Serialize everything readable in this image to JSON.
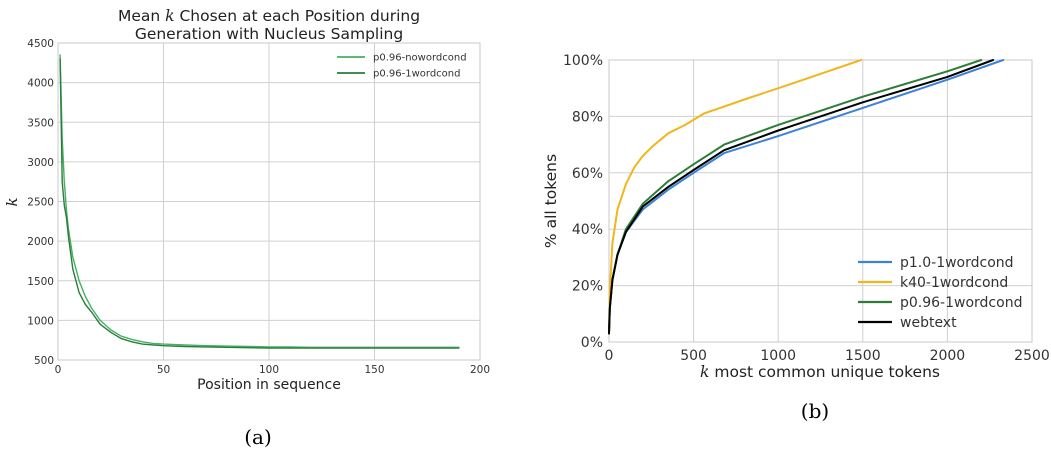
{
  "chart_data": [
    {
      "type": "line",
      "title_line1": "Mean k Chosen at each Position during",
      "title_line2": "Generation with Nucleus Sampling",
      "xlabel": "Position in sequence",
      "ylabel": "k",
      "xlim": [
        0,
        200
      ],
      "ylim": [
        500,
        4500
      ],
      "xticks": [
        0,
        50,
        100,
        150,
        200
      ],
      "yticks": [
        500,
        1000,
        1500,
        2000,
        2500,
        3000,
        3500,
        4000,
        4500
      ],
      "grid": true,
      "legend_position": "top-right",
      "caption": "(a)",
      "series": [
        {
          "name": "p0.96-nowordcond",
          "color": "#45b062",
          "x": [
            1,
            2,
            3,
            4,
            5,
            7,
            10,
            13,
            16,
            20,
            25,
            30,
            35,
            40,
            45,
            50,
            60,
            70,
            80,
            90,
            100,
            110,
            120,
            130,
            140,
            150,
            160,
            170,
            180,
            190
          ],
          "y": [
            4350,
            3300,
            2750,
            2400,
            2150,
            1800,
            1500,
            1300,
            1150,
            1000,
            880,
            800,
            760,
            730,
            710,
            700,
            690,
            680,
            675,
            670,
            665,
            665,
            660,
            660,
            660,
            660,
            660,
            660,
            660,
            660
          ]
        },
        {
          "name": "p0.96-1wordcond",
          "color": "#2a7d3a",
          "x": [
            1,
            2,
            3,
            4,
            5,
            7,
            10,
            13,
            16,
            20,
            25,
            30,
            35,
            40,
            45,
            50,
            60,
            70,
            80,
            90,
            100,
            110,
            120,
            130,
            140,
            150,
            160,
            170,
            180,
            190
          ],
          "y": [
            4300,
            2750,
            2450,
            2300,
            2050,
            1650,
            1350,
            1200,
            1100,
            950,
            850,
            770,
            730,
            700,
            690,
            680,
            670,
            665,
            660,
            655,
            650,
            650,
            650,
            650,
            650,
            650,
            650,
            650,
            650,
            650
          ]
        }
      ]
    },
    {
      "type": "line",
      "xlabel": "k most common unique tokens",
      "ylabel": "% all tokens",
      "xlim": [
        0,
        2500
      ],
      "ylim": [
        0,
        100
      ],
      "xticks": [
        0,
        500,
        1000,
        1500,
        2000,
        2500
      ],
      "yticks": [
        0,
        20,
        40,
        60,
        80,
        100
      ],
      "yticklabels": [
        "0%",
        "20%",
        "40%",
        "60%",
        "80%",
        "100%"
      ],
      "grid": true,
      "legend_position": "bottom-right",
      "caption": "(b)",
      "series": [
        {
          "name": "p1.0-1wordcond",
          "color": "#3b82d8",
          "x": [
            0,
            5,
            20,
            50,
            100,
            200,
            350,
            500,
            680,
            1000,
            1500,
            2000,
            2330
          ],
          "y": [
            3,
            12,
            22,
            31,
            39,
            47,
            54,
            60,
            67,
            73,
            83,
            93,
            100
          ]
        },
        {
          "name": "k40-1wordcond",
          "color": "#f2b51c",
          "x": [
            0,
            5,
            20,
            50,
            100,
            150,
            200,
            250,
            350,
            450,
            560,
            800,
            1100,
            1490
          ],
          "y": [
            3,
            18,
            35,
            47,
            56,
            62,
            66,
            69,
            74,
            77,
            81,
            86,
            92,
            100
          ]
        },
        {
          "name": "p0.96-1wordcond",
          "color": "#2e7d36",
          "x": [
            0,
            5,
            20,
            50,
            100,
            200,
            350,
            500,
            680,
            1000,
            1500,
            2000,
            2200
          ],
          "y": [
            3,
            12,
            22,
            31,
            40,
            49,
            57,
            63,
            70,
            77,
            87,
            96,
            100
          ]
        },
        {
          "name": "webtext",
          "color": "#000000",
          "x": [
            0,
            5,
            20,
            50,
            100,
            200,
            350,
            500,
            680,
            1000,
            1500,
            2000,
            2270
          ],
          "y": [
            3,
            12,
            22,
            31,
            39,
            48,
            55,
            61,
            68,
            75,
            85,
            94,
            100
          ]
        }
      ]
    }
  ]
}
